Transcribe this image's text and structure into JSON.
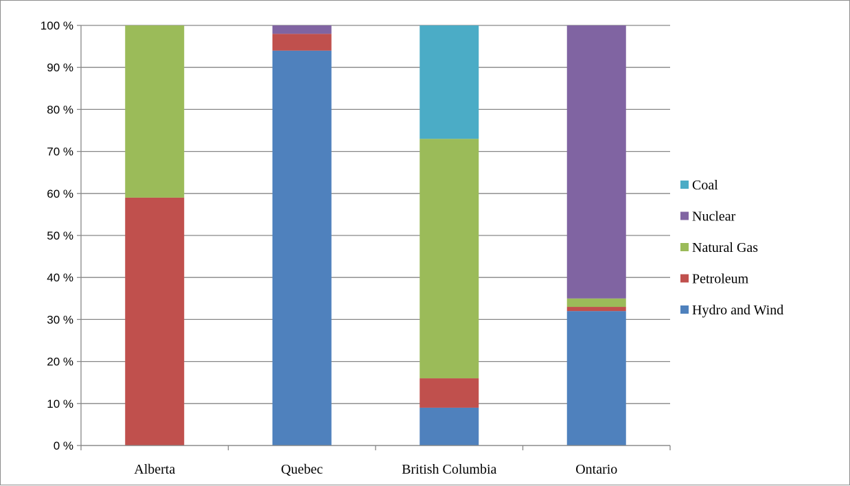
{
  "chart_data": {
    "type": "bar",
    "stacked": true,
    "percent_stacked": true,
    "title": "",
    "xlabel": "",
    "ylabel": "",
    "ylim": [
      0,
      100
    ],
    "yticks": [
      "0 %",
      "10 %",
      "20 %",
      "30 %",
      "40 %",
      "50 %",
      "60 %",
      "70 %",
      "80 %",
      "90 %",
      "100 %"
    ],
    "categories": [
      "Alberta",
      "Quebec",
      "British Columbia",
      "Ontario"
    ],
    "series": [
      {
        "name": "Hydro and Wind",
        "color": "#4f81bd",
        "values": [
          0,
          94,
          9,
          32
        ]
      },
      {
        "name": "Petroleum",
        "color": "#c0504d",
        "values": [
          59,
          4,
          7,
          1
        ]
      },
      {
        "name": "Natural Gas",
        "color": "#9bbb59",
        "values": [
          41,
          0,
          57,
          2
        ]
      },
      {
        "name": "Nuclear",
        "color": "#8064a2",
        "values": [
          0,
          2,
          0,
          65
        ]
      },
      {
        "name": "Coal",
        "color": "#4bacc6",
        "values": [
          0,
          0,
          27,
          0
        ]
      }
    ],
    "legend_order": [
      "Coal",
      "Nuclear",
      "Natural Gas",
      "Petroleum",
      "Hydro and Wind"
    ],
    "legend_position": "right",
    "grid": true
  }
}
